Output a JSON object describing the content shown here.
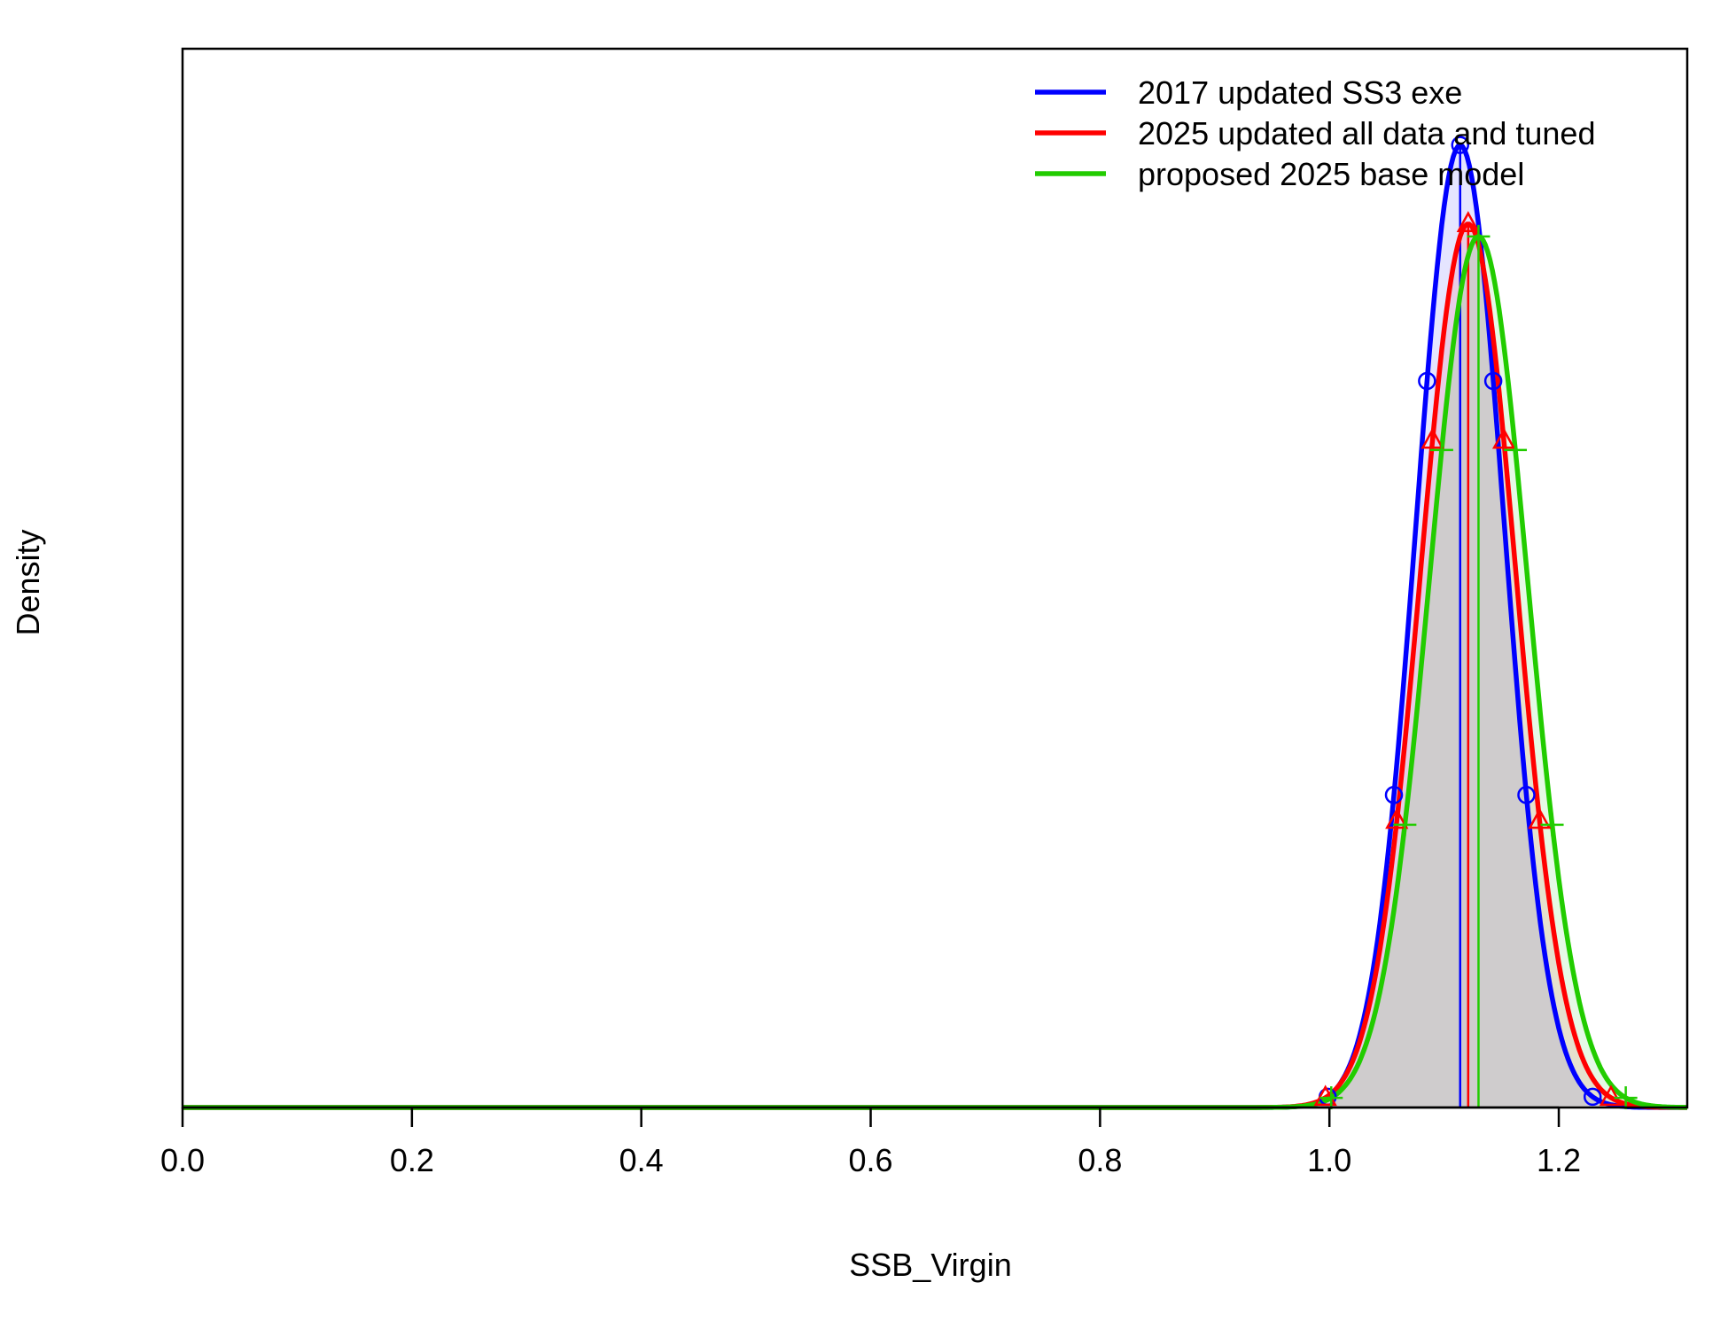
{
  "chart_data": {
    "type": "line",
    "title": "",
    "xlabel": "SSB_Virgin",
    "ylabel": "Density",
    "xlim": [
      0,
      1.312
    ],
    "ylim": [
      0,
      1.1
    ],
    "x_ticks": [
      0.0,
      0.2,
      0.4,
      0.6,
      0.8,
      1.0,
      1.2
    ],
    "x_tick_labels": [
      "0.0",
      "0.2",
      "0.4",
      "0.6",
      "0.8",
      "1.0",
      "1.2"
    ],
    "y_axis_ticks_shown": false,
    "grid": false,
    "legend_position": "top-right",
    "series": [
      {
        "name": "2017 updated SS3 exe",
        "color": "#0000FF",
        "fill": "rgba(0,0,255,0.10)",
        "marker": "circle",
        "mean": 1.114,
        "sd": 0.0385,
        "peak": 1.0,
        "median_line": 1.114,
        "interval": [
          0.9885,
          1.2395
        ]
      },
      {
        "name": "2025 updated all data and tuned",
        "color": "#FF0000",
        "fill": "rgba(255,0,0,0.10)",
        "marker": "triangle",
        "mean": 1.121,
        "sd": 0.0415,
        "peak": 0.918,
        "median_line": 1.121,
        "interval": [
          0.985,
          1.257
        ]
      },
      {
        "name": "proposed 2025 base model",
        "color": "#22CC00",
        "fill": "rgba(0,200,0,0.10)",
        "marker": "plus",
        "mean": 1.13,
        "sd": 0.0428,
        "peak": 0.905,
        "median_line": 1.13,
        "interval": [
          0.99,
          1.27
        ]
      }
    ]
  }
}
